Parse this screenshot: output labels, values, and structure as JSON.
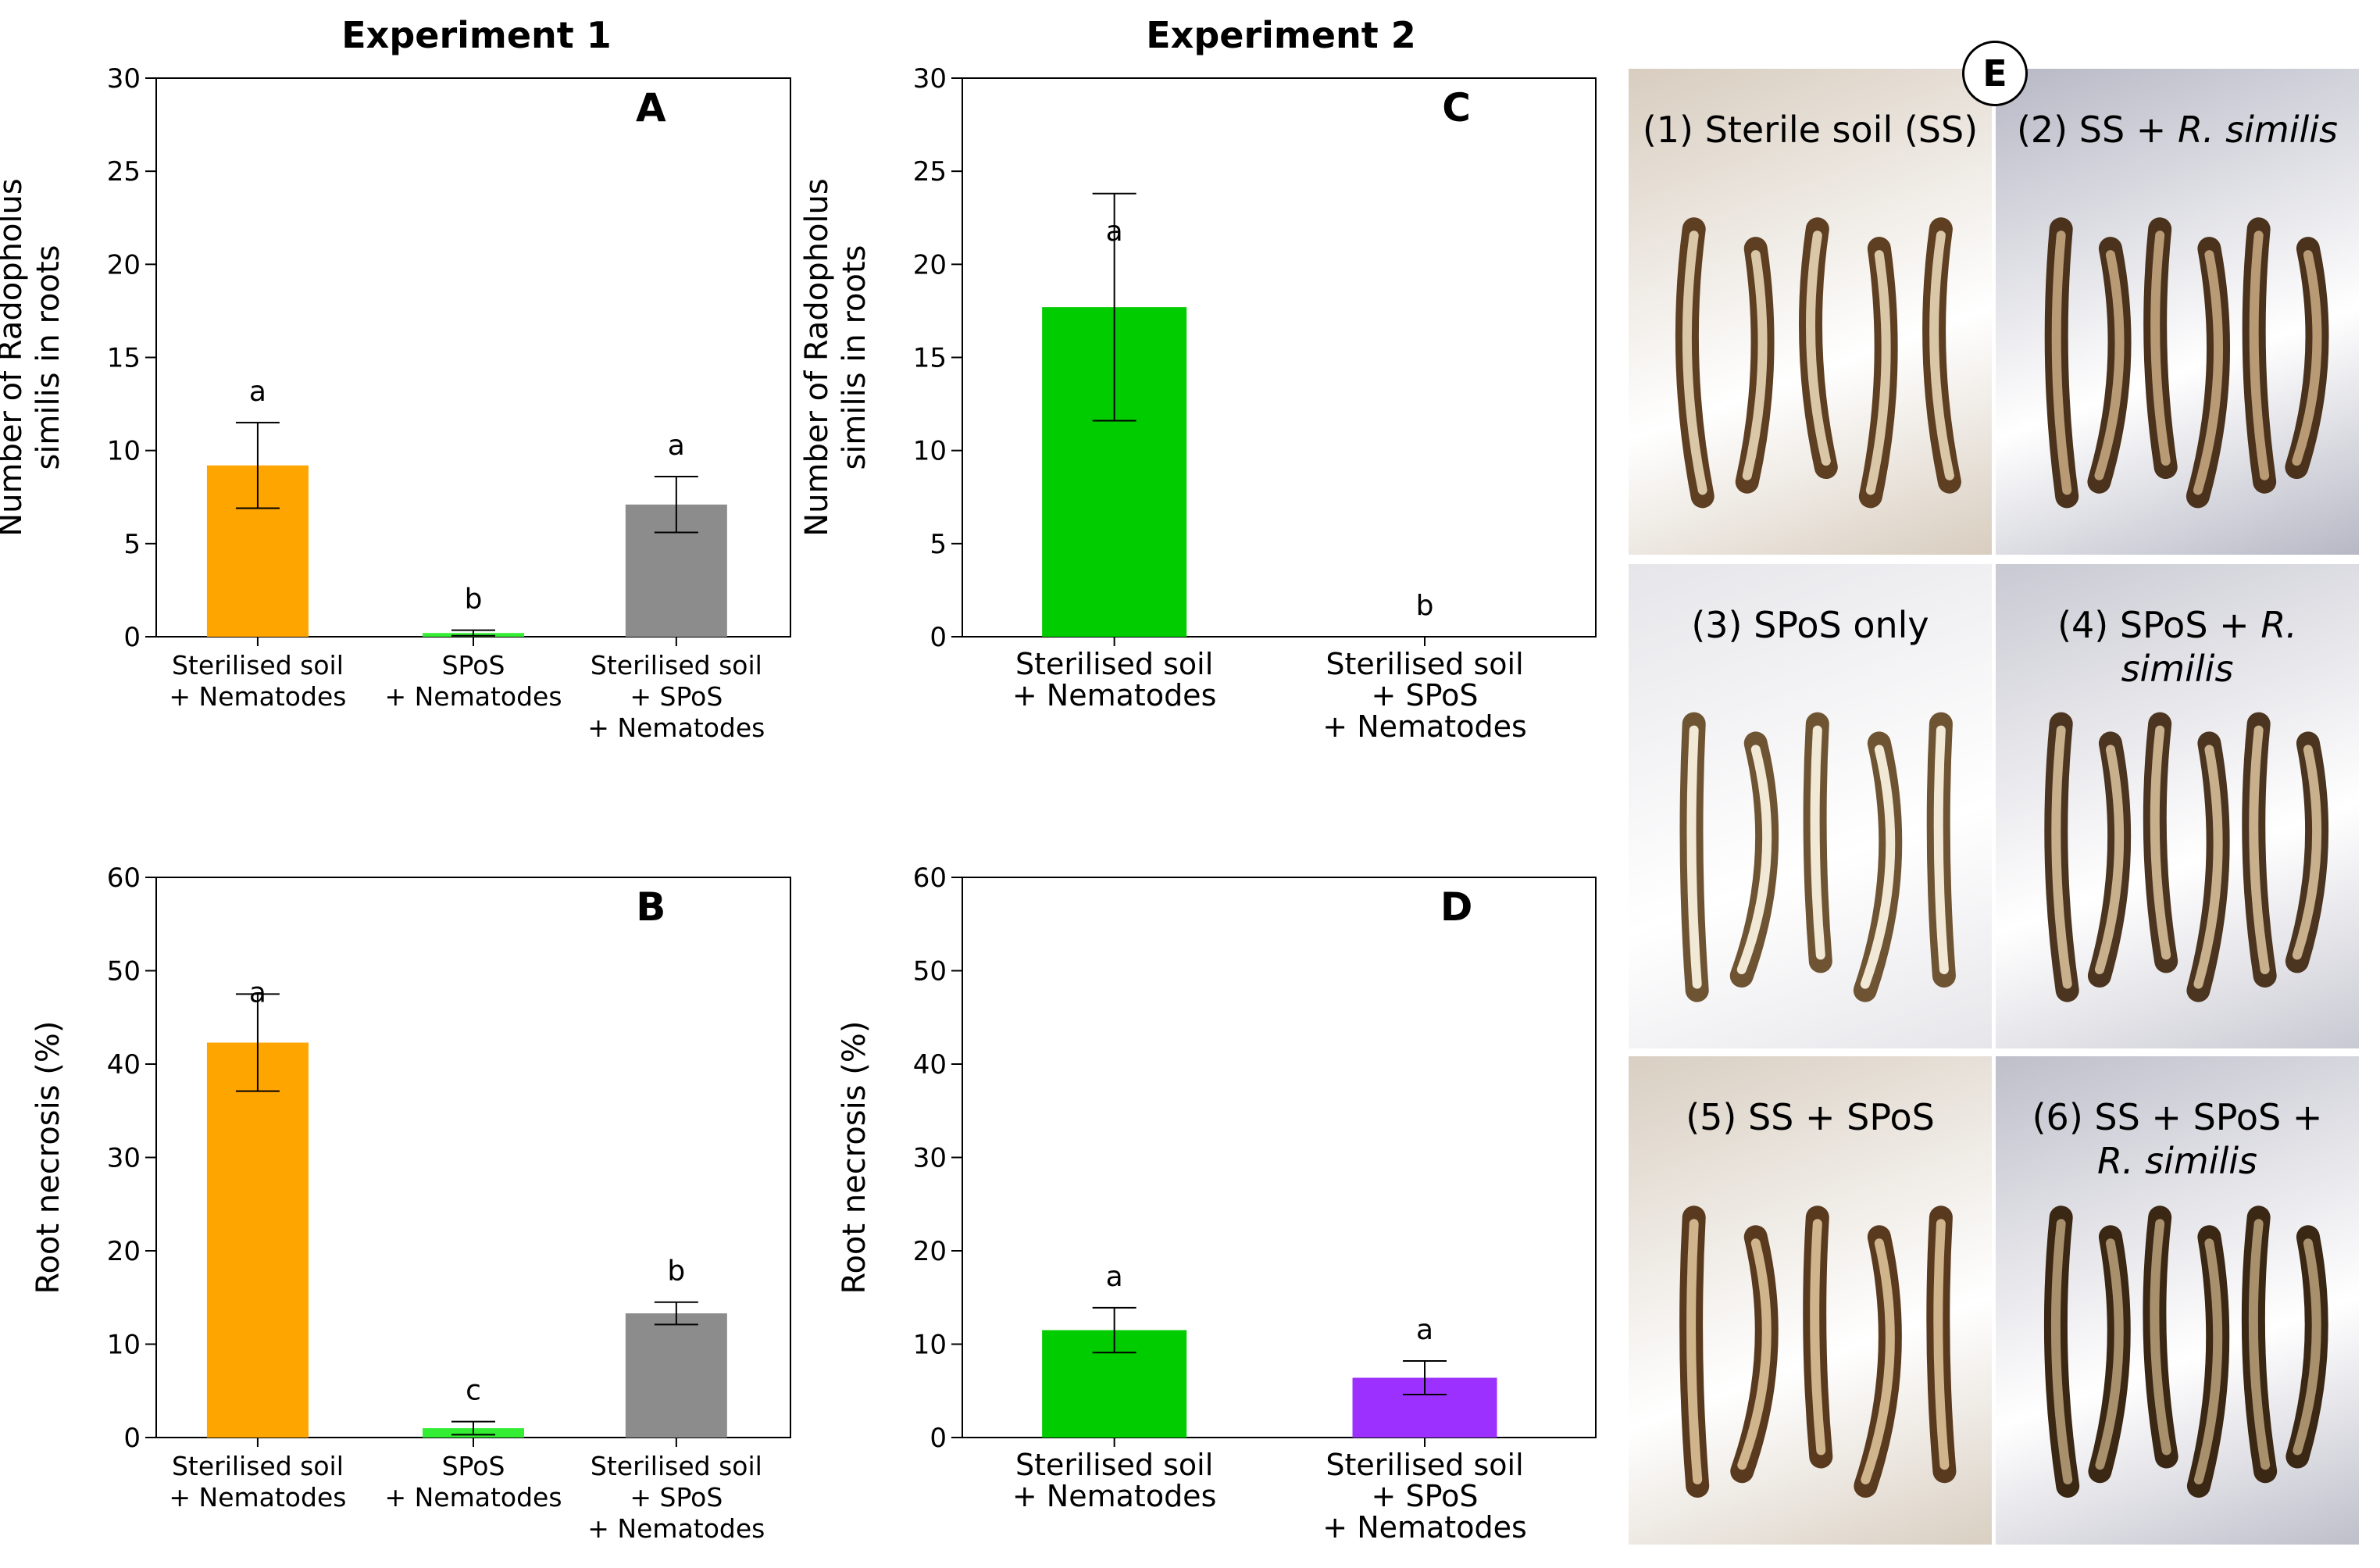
{
  "experiments": {
    "exp1_title": "Experiment 1",
    "exp2_title": "Experiment 2"
  },
  "chart_data": [
    {
      "panel": "A",
      "type": "bar",
      "ylabel": [
        "Number of Radopholus",
        "similis in roots"
      ],
      "ylim": [
        0,
        30
      ],
      "yticks": [
        0,
        5,
        10,
        15,
        20,
        25,
        30
      ],
      "categories": [
        [
          "Sterilised soil",
          "+ Nematodes"
        ],
        [
          "SPoS",
          "+ Nematodes"
        ],
        [
          "Sterilised soil",
          "+ SPoS",
          "+ Nematodes"
        ]
      ],
      "values": [
        9.2,
        0.2,
        7.1
      ],
      "errors": [
        2.3,
        0.15,
        1.5
      ],
      "letters": [
        "a",
        "b",
        "a"
      ],
      "colors": [
        "#FFA500",
        "#33EE33",
        "#8C8C8C"
      ]
    },
    {
      "panel": "C",
      "type": "bar",
      "ylabel": [
        "Number of Radopholus",
        "similis in roots"
      ],
      "ylim": [
        0,
        30
      ],
      "yticks": [
        0,
        5,
        10,
        15,
        20,
        25,
        30
      ],
      "categories": [
        [
          "Sterilised soil",
          "+ Nematodes"
        ],
        [
          "Sterilised soil",
          "+ SPoS",
          "+ Nematodes"
        ]
      ],
      "values": [
        17.7,
        0.0
      ],
      "errors": [
        6.1,
        0.0
      ],
      "letters": [
        "a",
        "b"
      ],
      "colors": [
        "#00CC00",
        "#9B30FF"
      ]
    },
    {
      "panel": "B",
      "type": "bar",
      "ylabel": [
        "Root necrosis (%)"
      ],
      "ylim": [
        0,
        60
      ],
      "yticks": [
        0,
        10,
        20,
        30,
        40,
        50,
        60
      ],
      "categories": [
        [
          "Sterilised soil",
          "+ Nematodes"
        ],
        [
          "SPoS",
          "+ Nematodes"
        ],
        [
          "Sterilised soil",
          "+ SPoS",
          "+ Nematodes"
        ]
      ],
      "values": [
        42.3,
        1.0,
        13.3
      ],
      "errors": [
        5.2,
        0.7,
        1.2
      ],
      "letters": [
        "a",
        "c",
        "b"
      ],
      "colors": [
        "#FFA500",
        "#33EE33",
        "#8C8C8C"
      ]
    },
    {
      "panel": "D",
      "type": "bar",
      "ylabel": [
        "Root necrosis (%)"
      ],
      "ylim": [
        0,
        60
      ],
      "yticks": [
        0,
        10,
        20,
        30,
        40,
        50,
        60
      ],
      "categories": [
        [
          "Sterilised soil",
          "+ Nematodes"
        ],
        [
          "Sterilised soil",
          "+ SPoS",
          "+ Nematodes"
        ]
      ],
      "values": [
        11.5,
        6.4
      ],
      "errors": [
        2.4,
        1.8
      ],
      "letters": [
        "a",
        "a"
      ],
      "colors": [
        "#00CC00",
        "#9B30FF"
      ]
    }
  ],
  "photos": {
    "panel_letter": "E",
    "items": [
      {
        "label": "(1) Sterile soil (SS)",
        "italic": "",
        "bg": "#D8CDBF",
        "root": "#5E3F22",
        "light": "#D9C7A8"
      },
      {
        "label": "(2) SS + ",
        "italic": "R. similis",
        "bg": "#B7B8C5",
        "root": "#4A321C",
        "light": "#B89A74"
      },
      {
        "label": "(3) SPoS only",
        "italic": "",
        "bg": "#E6E6EA",
        "root": "#6E5432",
        "light": "#F1E9D6"
      },
      {
        "label": "(4) SPoS + ",
        "italic": "R. similis",
        "bg": "#C9C9D3",
        "root": "#4B3520",
        "light": "#C9B08C"
      },
      {
        "label": "(5) SS + SPoS",
        "italic": "",
        "bg": "#D9CFC2",
        "root": "#5A3A1E",
        "light": "#CFB48C"
      },
      {
        "label": "(6) SS + SPoS + ",
        "italic": "R. similis",
        "bg": "#BFBFCB",
        "root": "#3A2714",
        "light": "#A8906C"
      }
    ]
  }
}
